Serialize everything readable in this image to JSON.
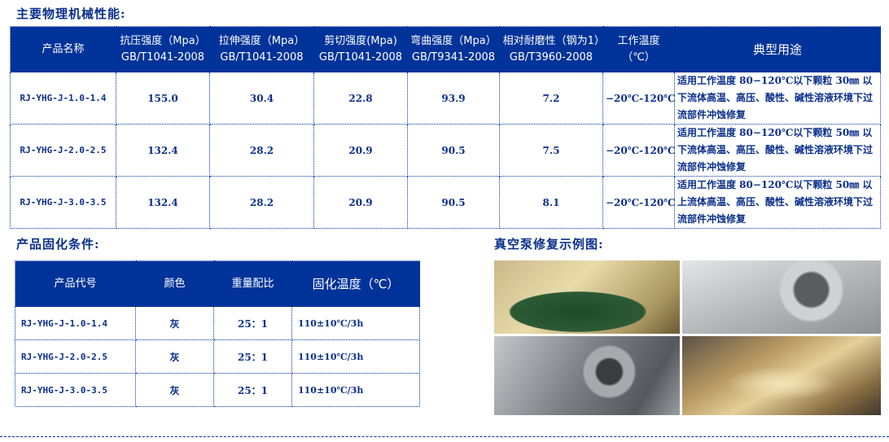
{
  "properties_title": "主要物理机械性能:",
  "properties_table": {
    "headers": [
      "产品名称",
      "抗压强度（Mpa）GB/T1041-2008",
      "拉伸强度（Mpa）GB/T1041-2008",
      "剪切强度(Mpa) GB/T1041-2008",
      "弯曲强度（Mpa）GB/T9341-2008",
      "相对耐磨性（钢为1）GB/T3960-2008",
      "工作温度（℃）",
      "典型用途"
    ],
    "rows": [
      [
        "RJ-YHG-J-1.0-1.4",
        "155.0",
        "30.4",
        "22.8",
        "93.9",
        "7.2",
        "−20℃-120℃",
        "适用工作温度 80−120℃以下颗粒 30㎜ 以下流体高温、高压、酸性、碱性溶液环境下过流部件冲蚀修复"
      ],
      [
        "RJ-YHG-J-2.0-2.5",
        "132.4",
        "28.2",
        "20.9",
        "90.5",
        "7.5",
        "−20℃-120℃",
        "适用工作温度 80−120℃以下颗粒 50㎜ 以下流体高温、高压、酸性、碱性溶液环境下过流部件冲蚀修复"
      ],
      [
        "RJ-YHG-J-3.0-3.5",
        "132.4",
        "28.2",
        "20.9",
        "90.5",
        "8.1",
        "−20℃-120℃",
        "适用工作温度 80−120℃以下颗粒 50㎜ 以上流体高温、高压、酸性、碱性溶液环境下过流部件冲蚀修复"
      ]
    ]
  },
  "curing_title": "产品固化条件:",
  "curing_table": {
    "headers": [
      "产品代号",
      "颜色",
      "重量配比",
      "固化温度（℃）"
    ],
    "rows": [
      [
        "RJ-YHG-J-1.0-1.4",
        "灰",
        "25：1",
        "110±10℃/3h"
      ],
      [
        "RJ-YHG-J-2.0-2.5",
        "灰",
        "25：1",
        "110±10℃/3h"
      ],
      [
        "RJ-YHG-J-3.0-3.5",
        "灰",
        "25：1",
        "110±10℃/3h"
      ]
    ]
  },
  "examples_title": "真空泵修复示例图:",
  "colors": {
    "header_bg": "#003399",
    "text": "#0a2f8c"
  }
}
